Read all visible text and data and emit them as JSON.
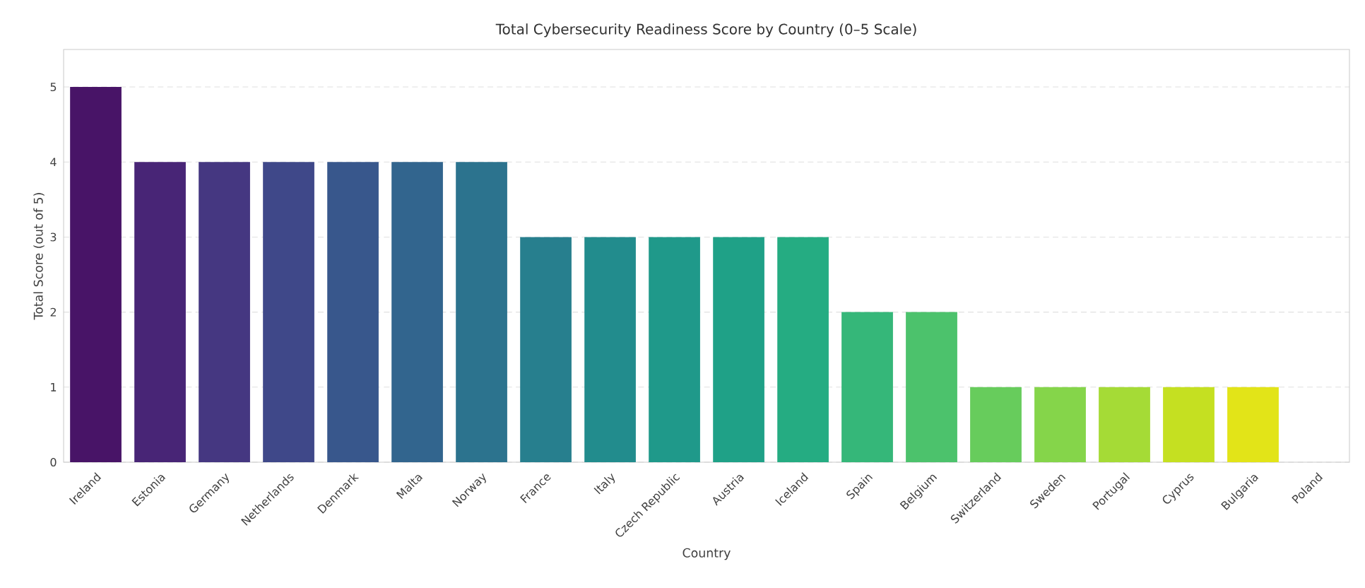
{
  "chart_data": {
    "type": "bar",
    "title": "Total Cybersecurity Readiness Score by Country (0–5 Scale)",
    "xlabel": "Country",
    "ylabel": "Total Score (out of 5)",
    "categories": [
      "Ireland",
      "Estonia",
      "Germany",
      "Netherlands",
      "Denmark",
      "Malta",
      "Norway",
      "France",
      "Italy",
      "Czech Republic",
      "Austria",
      "Iceland",
      "Spain",
      "Belgium",
      "Switzerland",
      "Sweden",
      "Portugal",
      "Cyprus",
      "Bulgaria",
      "Poland"
    ],
    "values": [
      5,
      4,
      4,
      4,
      4,
      4,
      4,
      3,
      3,
      3,
      3,
      3,
      2,
      2,
      1,
      1,
      1,
      1,
      1,
      0
    ],
    "colors": [
      "#481467",
      "#482576",
      "#453781",
      "#3f4889",
      "#38578c",
      "#32658e",
      "#2c738e",
      "#277f8e",
      "#228c8d",
      "#1f998a",
      "#1fa187",
      "#25ac82",
      "#35b779",
      "#4cc26c",
      "#67cc5c",
      "#85d54a",
      "#a5db36",
      "#c5e021",
      "#e2e418",
      "#fde725"
    ],
    "ylim": [
      0,
      5.5
    ],
    "yticks": [
      0,
      1,
      2,
      3,
      4,
      5
    ],
    "grid": "y"
  }
}
